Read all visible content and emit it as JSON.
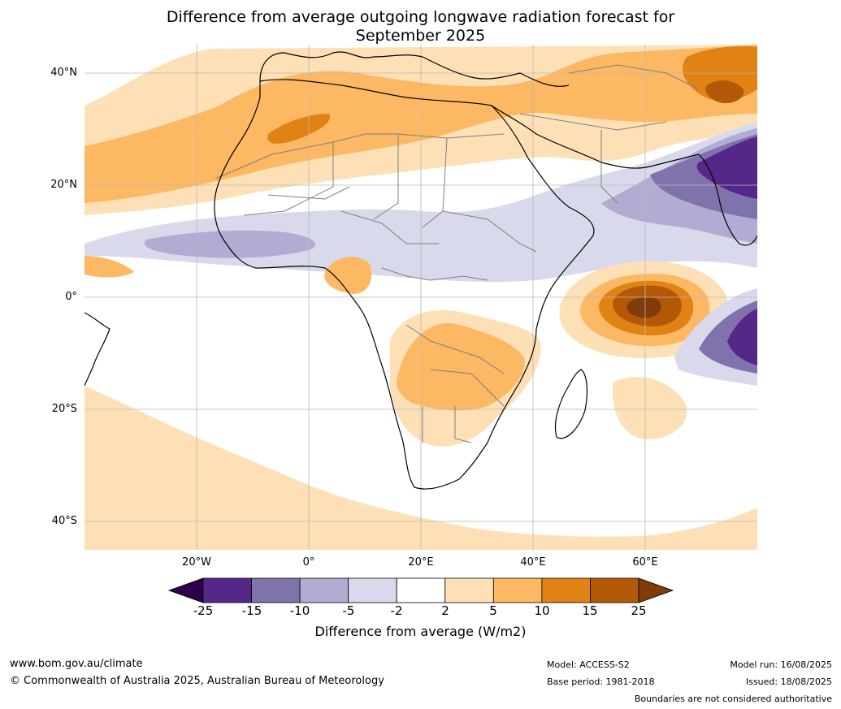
{
  "title": {
    "line1": "Difference from average outgoing longwave radiation forecast for",
    "line2": "September 2025"
  },
  "map": {
    "lat_ticks": [
      "40°N",
      "20°N",
      "0°",
      "20°S",
      "40°S"
    ],
    "lon_ticks": [
      "20°W",
      "0°",
      "20°E",
      "40°E",
      "60°E"
    ]
  },
  "colorbar": {
    "ticks": [
      "-25",
      "-15",
      "-10",
      "-5",
      "-2",
      "2",
      "5",
      "10",
      "15",
      "25"
    ],
    "colors": [
      "#2d004b",
      "#542788",
      "#8073ac",
      "#b2abd2",
      "#d8daeb",
      "#ffffff",
      "#fee0b6",
      "#fdb863",
      "#e08214",
      "#b35806",
      "#7f3b08"
    ],
    "label": "Difference from average (W/m2)"
  },
  "footer": {
    "url": "www.bom.gov.au/climate",
    "copyright": "© Commonwealth of Australia 2025, Australian Bureau of Meteorology",
    "model": "Model: ACCESS-S2",
    "base_period": "Base period: 1981-2018",
    "model_run": "Model run: 16/08/2025",
    "issued": "Issued: 18/08/2025",
    "disclaimer": "Boundaries are not considered authoritative"
  }
}
